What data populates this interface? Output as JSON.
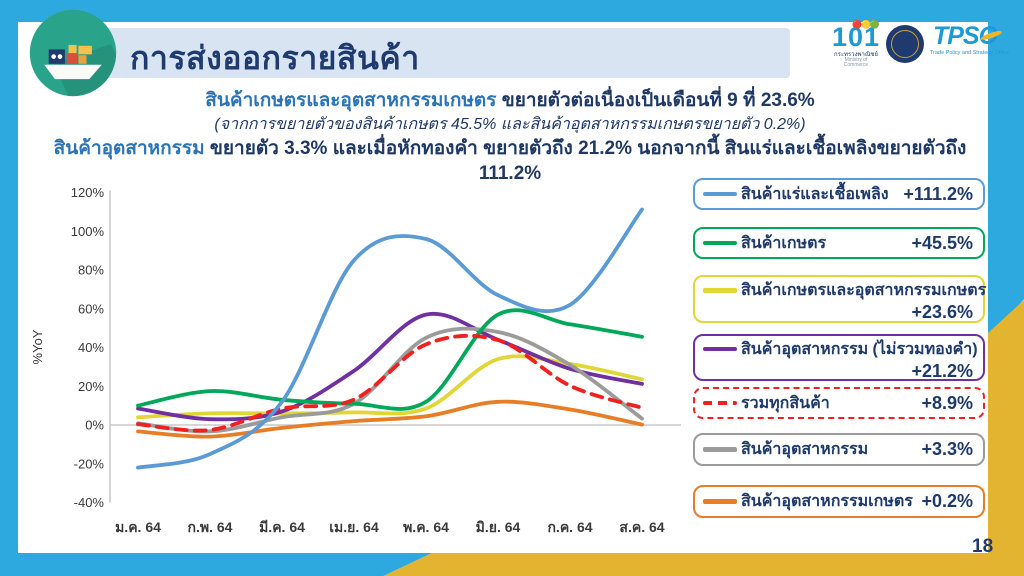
{
  "header": {
    "title": "การส่งออกรายสินค้า",
    "logos": {
      "moc_number": "101",
      "moc_caption_th": "กระทรวงพาณิชย์",
      "moc_caption_en": "Ministry of Commerce",
      "tpso": "TPSO",
      "tpso_caption": "Trade Policy and Strategy Office"
    }
  },
  "subtitle": {
    "line1_highlight": "สินค้าเกษตรและอุตสาหกรรมเกษตร",
    "line1_rest": " ขยายตัวต่อเนื่องเป็นเดือนที่ 9 ที่ 23.6%",
    "line2": "(จากการขยายตัวของสินค้าเกษตร 45.5% และสินค้าอุตสาหกรรมเกษตรขยายตัว 0.2%)",
    "line3_highlight": "สินค้าอุตสาหกรรม",
    "line3_rest": " ขยายตัว 3.3% และเมื่อหักทองคำ ขยายตัวถึง 21.2% นอกจากนี้ สินแร่และเชื้อเพลิงขยายตัวถึง 111.2%"
  },
  "chart_data": {
    "type": "line",
    "ylabel": "%YoY",
    "ylim": [
      -40,
      120
    ],
    "ytick_step": 20,
    "grid": "zero-line-only",
    "legend_position": "right",
    "categories": [
      "ม.ค. 64",
      "ก.พ. 64",
      "มี.ค. 64",
      "เม.ย. 64",
      "พ.ค. 64",
      "มิ.ย. 64",
      "ก.ค. 64",
      "ส.ค. 64"
    ],
    "series": [
      {
        "name": "สินค้าแร่และเชื้อเพลิง",
        "color": "#5B9BD5",
        "dash": false,
        "values": [
          -22,
          -15,
          12,
          85,
          96,
          67,
          62,
          111.2
        ]
      },
      {
        "name": "สินค้าเกษตร",
        "color": "#00A859",
        "dash": false,
        "values": [
          10,
          17.5,
          13,
          11,
          12,
          57,
          52,
          45.5
        ]
      },
      {
        "name": "สินค้าเกษตรและอุตสาหกรรมเกษตร",
        "color": "#E0D636",
        "dash": false,
        "values": [
          4,
          6,
          6,
          6.5,
          8.5,
          34,
          31.5,
          23.6
        ]
      },
      {
        "name": "สินค้าอุตสาหกรรม (ไม่รวมทองคำ)",
        "color": "#7030A0",
        "dash": false,
        "values": [
          8.5,
          3,
          7,
          28,
          57,
          44,
          29,
          21.2
        ]
      },
      {
        "name": "รวมทุกสินค้า",
        "color": "#F02020",
        "dash": true,
        "values": [
          0.4,
          -2.6,
          8.5,
          13.1,
          41.6,
          43.8,
          20.3,
          8.9
        ]
      },
      {
        "name": "สินค้าอุตสาหกรรม",
        "color": "#9B9B9B",
        "dash": false,
        "values": [
          0.9,
          -3.3,
          4,
          11,
          45,
          48,
          31,
          3.3
        ]
      },
      {
        "name": "สินค้าอุตสาหกรรมเกษตร",
        "color": "#E87D28",
        "dash": false,
        "values": [
          -3.3,
          -6,
          -1.5,
          2,
          4.5,
          12,
          8,
          0.2
        ]
      }
    ],
    "draw_order": [
      2,
      3,
      5,
      6,
      1,
      4,
      0
    ]
  },
  "legend": {
    "items": [
      {
        "label": "สินค้าแร่และเชื้อเพลิง",
        "value": "+111.2%",
        "color": "#5B9BD5",
        "dashed": false
      },
      {
        "label": "สินค้าเกษตร",
        "value": "+45.5%",
        "color": "#00A859",
        "dashed": false
      },
      {
        "label": "สินค้าเกษตรและอุตสาหกรรมเกษตร",
        "value": "+23.6%",
        "color": "#E0D636",
        "dashed": false
      },
      {
        "label": "สินค้าอุตสาหกรรม (ไม่รวมทองคำ)",
        "value": "+21.2%",
        "color": "#7030A0",
        "dashed": false
      },
      {
        "label": "รวมทุกสินค้า",
        "value": "+8.9%",
        "color": "#F02020",
        "dashed": true
      },
      {
        "label": "สินค้าอุตสาหกรรม",
        "value": "+3.3%",
        "color": "#9B9B9B",
        "dashed": false
      },
      {
        "label": "สินค้าอุตสาหกรรมเกษตร",
        "value": "+0.2%",
        "color": "#E87D28",
        "dashed": false
      }
    ]
  },
  "page": {
    "number": "18"
  }
}
